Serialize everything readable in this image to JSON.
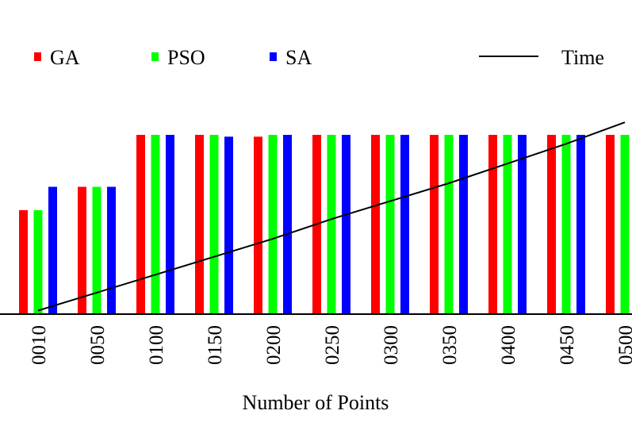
{
  "chart_data": {
    "type": "bar",
    "xlabel": "Number of Points",
    "ylabel": "",
    "ylim": [
      0,
      1.0
    ],
    "categories": [
      "0010",
      "0050",
      "0100",
      "0150",
      "0200",
      "0250",
      "0300",
      "0350",
      "0400",
      "0450",
      "0500"
    ],
    "series": [
      {
        "name": "GA",
        "color": "#ff0000",
        "values": [
          0.58,
          0.71,
          1.0,
          1.0,
          0.99,
          1.0,
          1.0,
          1.0,
          1.0,
          1.0,
          1.0
        ]
      },
      {
        "name": "PSO",
        "color": "#00ff00",
        "values": [
          0.58,
          0.71,
          1.0,
          1.0,
          1.0,
          1.0,
          1.0,
          1.0,
          1.0,
          1.0,
          1.0
        ]
      },
      {
        "name": "SA",
        "color": "#0000ff",
        "values": [
          0.71,
          0.71,
          1.0,
          0.99,
          1.0,
          1.0,
          1.0,
          1.0,
          1.0,
          1.0,
          null
        ]
      }
    ],
    "line_series": {
      "name": "Time",
      "color": "#000000",
      "y_normalized": [
        0.02,
        0.12,
        0.22,
        0.32,
        0.42,
        0.53,
        0.63,
        0.73,
        0.84,
        0.95,
        1.07
      ]
    },
    "legend": "top",
    "grid": false
  }
}
